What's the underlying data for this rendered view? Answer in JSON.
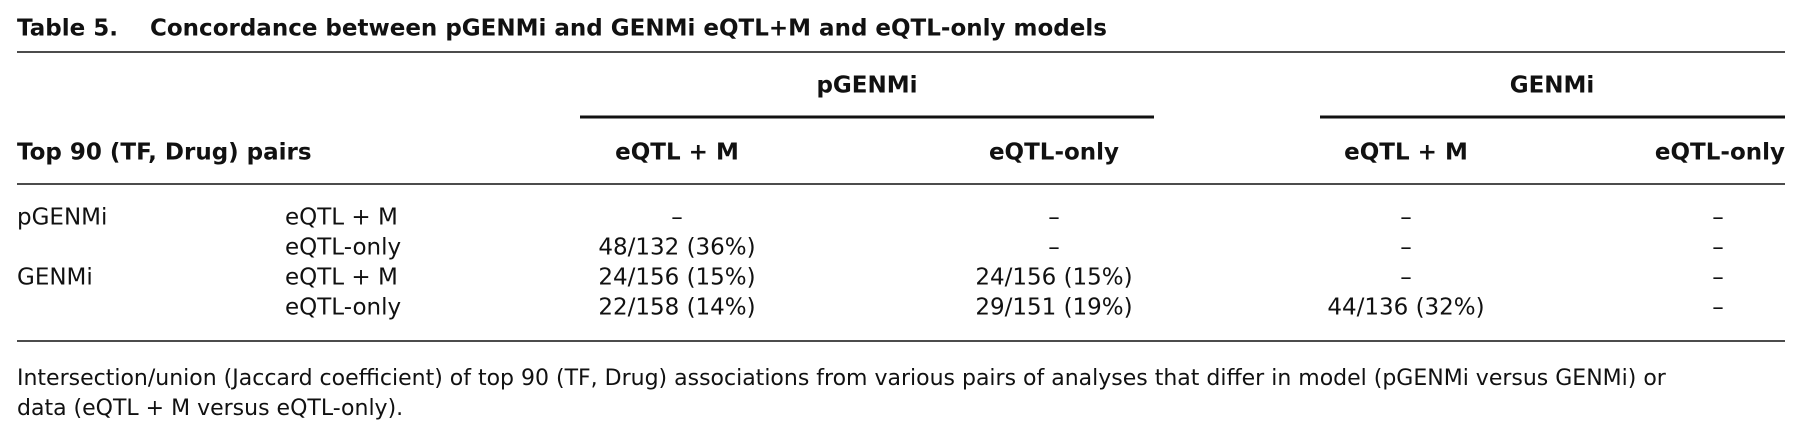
{
  "table_label": "Table 5.",
  "caption": "Concordance between pGENMi and GENMi eQTL+M and eQTL-only models",
  "table": {
    "column_groups": [
      "pGENMi",
      "GENMi"
    ],
    "header": [
      "Top 90 (TF, Drug) pairs",
      "eQTL + M",
      "eQTL-only",
      "eQTL + M",
      "eQTL-only"
    ],
    "rows": [
      {
        "group": "pGENMi",
        "model": "eQTL + M",
        "cells": [
          "–",
          "–",
          "–",
          "–"
        ]
      },
      {
        "model": "eQTL-only",
        "cells": [
          "48/132 (36%)",
          "–",
          "–",
          "–"
        ]
      },
      {
        "group": "GENMi",
        "model": "eQTL + M",
        "cells": [
          "24/156 (15%)",
          "24/156 (15%)",
          "–",
          "–"
        ]
      },
      {
        "model": "eQTL-only",
        "cells": [
          "22/158 (14%)",
          "29/151 (19%)",
          "44/136 (32%)",
          "–"
        ]
      }
    ]
  },
  "footnote": [
    "Intersection/union (Jaccard coefficient) of top 90 (TF, Drug) associations from various pairs of analyses that differ in model (pGENMi versus GENMi) or",
    "data (eQTL + M versus eQTL-only)."
  ]
}
